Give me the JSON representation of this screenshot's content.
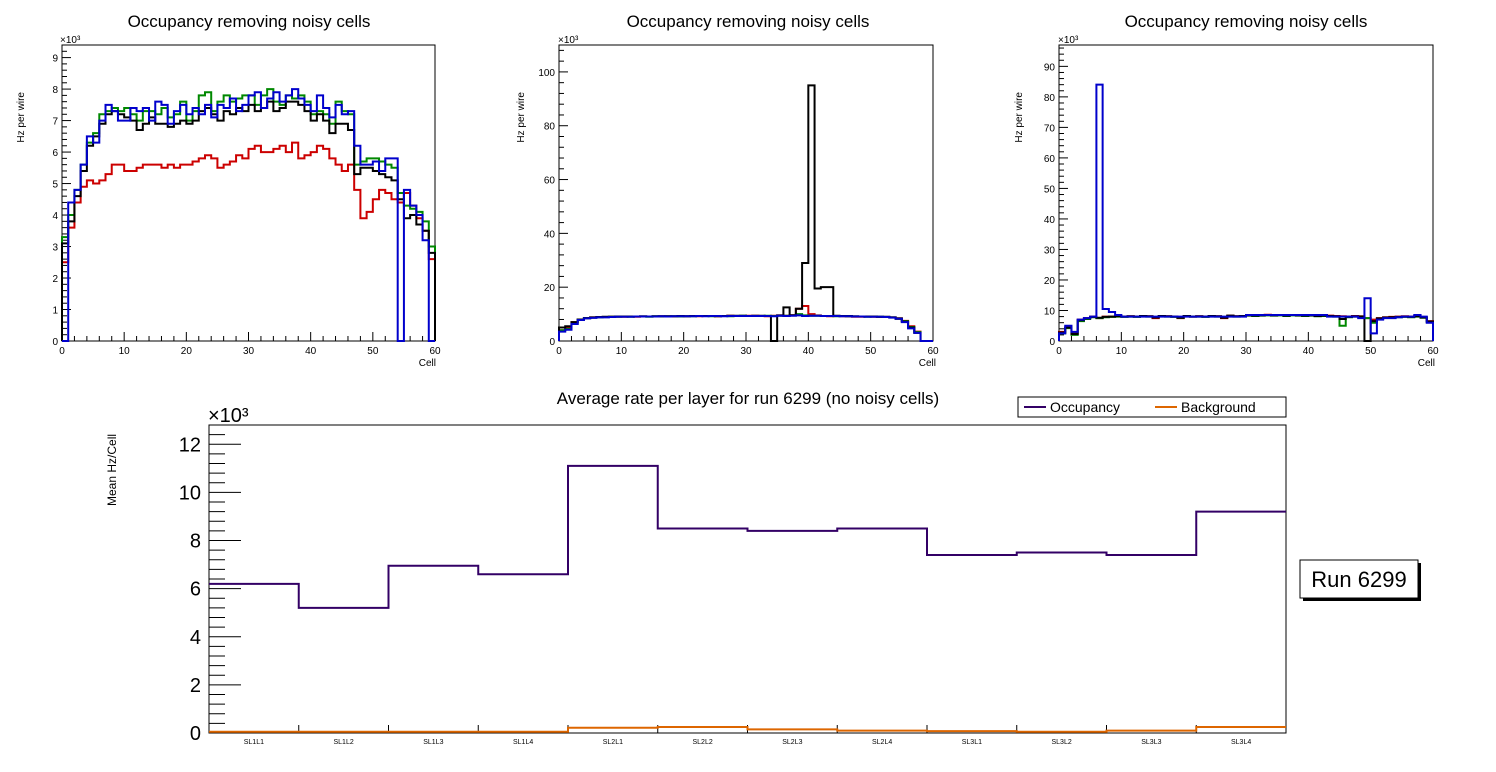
{
  "chart_data": [
    {
      "type": "line",
      "title": "Occupancy removing noisy cells",
      "xlabel": "Cell",
      "ylabel": "Hz per wire",
      "y_exponent": "×10³",
      "xlim": [
        0,
        60
      ],
      "ylim": [
        0,
        9.4
      ],
      "x_ticks": [
        0,
        10,
        20,
        30,
        40,
        50,
        60
      ],
      "y_ticks": [
        0,
        1,
        2,
        3,
        4,
        5,
        6,
        7,
        8,
        9
      ],
      "series": [
        {
          "name": "red",
          "color": "#cc0000",
          "values": [
            2.5,
            3.6,
            4.4,
            4.9,
            5.1,
            5.0,
            5.1,
            5.3,
            5.6,
            5.6,
            5.4,
            5.4,
            5.5,
            5.6,
            5.6,
            5.6,
            5.5,
            5.6,
            5.5,
            5.6,
            5.6,
            5.7,
            5.8,
            5.9,
            5.8,
            5.5,
            5.6,
            5.7,
            5.9,
            5.8,
            6.1,
            6.2,
            6.0,
            6.0,
            6.1,
            6.2,
            6.0,
            6.3,
            5.8,
            5.9,
            6.0,
            6.2,
            6.1,
            5.8,
            5.6,
            5.4,
            5.6,
            4.8,
            3.9,
            4.1,
            4.5,
            4.8,
            4.7,
            4.5,
            4.4,
            4.7,
            4.3,
            3.9,
            3.5,
            2.6
          ]
        },
        {
          "name": "green",
          "color": "#008800",
          "values": [
            3.3,
            4.0,
            4.8,
            5.6,
            6.3,
            6.6,
            7.2,
            7.3,
            7.4,
            7.3,
            7.4,
            7.2,
            7.0,
            7.3,
            7.3,
            7.2,
            7.4,
            7.1,
            7.2,
            7.6,
            7.0,
            7.3,
            7.8,
            7.9,
            7.3,
            7.6,
            7.8,
            7.6,
            7.7,
            7.8,
            7.8,
            7.5,
            7.8,
            8.0,
            7.6,
            7.5,
            7.8,
            7.7,
            7.8,
            7.6,
            7.2,
            7.3,
            7.2,
            6.9,
            7.6,
            7.3,
            7.2,
            5.6,
            5.7,
            5.8,
            5.8,
            5.7,
            5.6,
            5.5,
            4.7,
            4.3,
            4.2,
            4.1,
            3.8,
            3.0
          ]
        },
        {
          "name": "black",
          "color": "#000000",
          "values": [
            3.1,
            3.8,
            4.6,
            5.4,
            6.2,
            6.5,
            6.9,
            7.2,
            7.3,
            7.2,
            7.1,
            7.0,
            6.7,
            6.9,
            7.1,
            6.9,
            6.9,
            6.8,
            6.9,
            7.0,
            6.9,
            7.0,
            7.3,
            7.4,
            7.2,
            7.0,
            7.3,
            7.2,
            7.4,
            7.3,
            7.5,
            7.3,
            7.4,
            7.6,
            7.3,
            7.4,
            7.6,
            7.6,
            7.5,
            7.3,
            7.0,
            7.2,
            7.0,
            6.6,
            6.9,
            6.9,
            6.7,
            5.3,
            5.5,
            5.5,
            5.4,
            5.3,
            5.2,
            5.1,
            4.5,
            3.9,
            4.0,
            3.7,
            3.5,
            2.8
          ]
        },
        {
          "name": "blue",
          "color": "#0000cc",
          "values": [
            0,
            4.4,
            4.8,
            5.6,
            6.5,
            6.3,
            7.0,
            7.5,
            7.3,
            7.0,
            7.0,
            7.4,
            7.3,
            7.4,
            7.0,
            7.6,
            7.5,
            6.9,
            7.3,
            7.5,
            7.2,
            7.4,
            7.2,
            7.5,
            7.1,
            7.5,
            7.4,
            7.7,
            7.3,
            7.5,
            7.8,
            7.9,
            7.4,
            7.7,
            7.9,
            7.6,
            7.8,
            8.0,
            7.7,
            7.5,
            7.3,
            7.8,
            7.4,
            7.1,
            7.5,
            7.2,
            7.3,
            6.2,
            5.6,
            5.6,
            5.7,
            5.4,
            5.8,
            5.8,
            0,
            4.8,
            4.3,
            4.0,
            3.2,
            0
          ]
        }
      ]
    },
    {
      "type": "line",
      "title": "Occupancy removing noisy cells",
      "xlabel": "Cell",
      "ylabel": "Hz per wire",
      "y_exponent": "×10³",
      "xlim": [
        0,
        60
      ],
      "ylim": [
        0,
        110
      ],
      "x_ticks": [
        0,
        10,
        20,
        30,
        40,
        50,
        60
      ],
      "y_ticks": [
        0,
        20,
        40,
        60,
        80,
        100
      ],
      "series": [
        {
          "name": "red",
          "color": "#cc0000",
          "values": [
            4,
            5,
            7,
            8,
            8.5,
            8.8,
            8.9,
            8.9,
            9,
            9,
            9,
            9.1,
            9,
            9.1,
            9.1,
            9.1,
            9.2,
            9.2,
            9.1,
            9.2,
            9.2,
            9.3,
            9.2,
            9.3,
            9.3,
            9.2,
            9.3,
            9.4,
            9.3,
            9.3,
            9.4,
            9.4,
            9.3,
            9.2,
            9.4,
            9.5,
            9.4,
            9.6,
            12,
            13,
            10,
            9.5,
            9.3,
            9.2,
            9.3,
            9.2,
            9.1,
            9.0,
            9.0,
            9.1,
            9.0,
            8.9,
            8.9,
            8.8,
            8.5,
            7.5,
            5.5,
            3.5,
            0,
            0
          ]
        },
        {
          "name": "green",
          "color": "#008800",
          "values": [
            4,
            4.5,
            6.5,
            8,
            8.5,
            8.7,
            8.8,
            8.9,
            9,
            9,
            9.1,
            9,
            9.1,
            9.1,
            9,
            9.2,
            9.1,
            9.2,
            9.2,
            9.1,
            9.2,
            9.2,
            9.3,
            9.3,
            9.2,
            9.3,
            9.3,
            9.2,
            9.3,
            9.4,
            9.3,
            9.3,
            9.3,
            9.4,
            9.3,
            9.4,
            9.4,
            9.5,
            10,
            9.5,
            9.4,
            9.4,
            9.3,
            9.3,
            9.2,
            9.3,
            9.2,
            9.1,
            9.1,
            9.0,
            9.1,
            9.0,
            8.9,
            8.8,
            8.4,
            7.4,
            5.2,
            3.3,
            0,
            0
          ]
        },
        {
          "name": "black",
          "color": "#000000",
          "values": [
            5,
            5.5,
            7,
            8,
            8.5,
            8.8,
            8.9,
            9,
            9,
            9.1,
            9.1,
            9.1,
            9.1,
            9.2,
            9.1,
            9.2,
            9.2,
            9.2,
            9.2,
            9.3,
            9.2,
            9.3,
            9.3,
            9.3,
            9.3,
            9.2,
            9.3,
            9.4,
            9.4,
            9.4,
            9.3,
            9.4,
            9.4,
            9.3,
            0,
            9.5,
            12.5,
            9.5,
            12,
            29,
            95,
            19.5,
            20,
            20,
            9.4,
            9.3,
            9.3,
            9.2,
            9.1,
            9.1,
            9.1,
            9.0,
            9.0,
            8.8,
            8.2,
            7.2,
            5.0,
            3.0,
            0,
            0
          ]
        },
        {
          "name": "blue",
          "color": "#0000cc",
          "values": [
            3.5,
            4.2,
            6.3,
            7.8,
            8.4,
            8.6,
            8.8,
            8.8,
            8.9,
            9,
            9,
            9,
            9.1,
            9.1,
            9.1,
            9.1,
            9.2,
            9.1,
            9.2,
            9.2,
            9.2,
            9.2,
            9.3,
            9.2,
            9.3,
            9.3,
            9.2,
            9.3,
            9.3,
            9.3,
            9.3,
            9.3,
            9.3,
            9.3,
            9.2,
            9.4,
            9.3,
            9.4,
            9.5,
            9.3,
            9.4,
            9.4,
            9.3,
            9.3,
            9.3,
            9.2,
            9.2,
            9.1,
            9.1,
            9.0,
            9.0,
            9.0,
            8.9,
            8.7,
            8.3,
            7.0,
            4.7,
            3.0,
            0,
            0
          ]
        }
      ]
    },
    {
      "type": "line",
      "title": "Occupancy removing noisy cells",
      "xlabel": "Cell",
      "ylabel": "Hz per wire",
      "y_exponent": "×10³",
      "xlim": [
        0,
        60
      ],
      "ylim": [
        0,
        97
      ],
      "x_ticks": [
        0,
        10,
        20,
        30,
        40,
        50,
        60
      ],
      "y_ticks": [
        0,
        10,
        20,
        30,
        40,
        50,
        60,
        70,
        80,
        90
      ],
      "series": [
        {
          "name": "red",
          "color": "#cc0000",
          "values": [
            3,
            4.5,
            2.5,
            7,
            7.5,
            8,
            7.5,
            8,
            8,
            8.2,
            8,
            8.1,
            8,
            8.2,
            8.1,
            7.5,
            8.2,
            8.1,
            8,
            7.5,
            8.2,
            8,
            8.1,
            8,
            8.2,
            8.1,
            7.5,
            8.3,
            8.1,
            8.2,
            8.5,
            8.3,
            8.4,
            8.6,
            8.4,
            8.5,
            8.3,
            8.5,
            8.4,
            8.3,
            8.5,
            8.2,
            8.4,
            8.3,
            8.2,
            8.1,
            8,
            8.2,
            8.1,
            7.5,
            7,
            7.5,
            7.8,
            7.9,
            8,
            8.1,
            8,
            8.2,
            7.8,
            6.5
          ]
        },
        {
          "name": "green",
          "color": "#008800",
          "values": [
            2.5,
            4.2,
            2,
            6.5,
            7.2,
            7.8,
            7.5,
            7.8,
            7.9,
            8,
            7.9,
            8,
            7.9,
            8.1,
            8,
            7.8,
            8.1,
            8,
            7.9,
            7.6,
            8.1,
            8,
            8,
            7.9,
            8.1,
            8,
            7.8,
            8.2,
            8,
            8.1,
            8.3,
            8.2,
            8.3,
            8.4,
            8.3,
            8.4,
            8.2,
            8.4,
            8.3,
            8.2,
            8.3,
            8.1,
            8.2,
            8.1,
            8,
            5,
            7.8,
            8,
            8,
            7.5,
            6,
            7.3,
            7.6,
            7.7,
            7.8,
            7.9,
            7.8,
            8,
            7.6,
            6.2
          ]
        },
        {
          "name": "black",
          "color": "#000000",
          "values": [
            2.8,
            4.4,
            2.3,
            6.8,
            7.4,
            7.9,
            7.6,
            7.9,
            8,
            8.1,
            8,
            8.1,
            8,
            8.2,
            8.1,
            7.7,
            8.2,
            8.1,
            8,
            7.6,
            8.2,
            8,
            8.1,
            8,
            8.2,
            8.1,
            7.6,
            8.3,
            8.1,
            8.2,
            8.4,
            8.3,
            8.4,
            8.5,
            8.4,
            8.5,
            8.3,
            8.5,
            8.4,
            8.3,
            8.4,
            8.2,
            8.3,
            8.2,
            8.1,
            7.2,
            7.9,
            8.1,
            8,
            0,
            6.5,
            7.4,
            7.7,
            7.8,
            7.9,
            8,
            7.9,
            8.1,
            7.7,
            6.4
          ]
        },
        {
          "name": "blue",
          "color": "#0000cc",
          "values": [
            2.5,
            5,
            3,
            7,
            7.5,
            8,
            84,
            10.5,
            9.5,
            8.5,
            8,
            8,
            8,
            8,
            8,
            8,
            8,
            8,
            8,
            8,
            8,
            8,
            8,
            8,
            8,
            8,
            8,
            8,
            8,
            8,
            8.5,
            8.5,
            8.5,
            8.5,
            8.5,
            8.5,
            8.5,
            8.5,
            8.5,
            8.5,
            8.5,
            8.5,
            8.5,
            8,
            8,
            8,
            8,
            8,
            7.5,
            14,
            2.5,
            7,
            7.5,
            7.5,
            7.8,
            8,
            8,
            8.5,
            8,
            6
          ]
        }
      ]
    },
    {
      "type": "line",
      "title": "Average rate per layer for run 6299 (no noisy cells)",
      "xlabel": "",
      "ylabel": "Mean Hz/Cell",
      "y_exponent": "×10³",
      "ylim": [
        0,
        12.8
      ],
      "y_ticks": [
        0,
        2,
        4,
        6,
        8,
        10,
        12
      ],
      "categories": [
        "SL1L1",
        "SL1L2",
        "SL1L3",
        "SL1L4",
        "SL2L1",
        "SL2L2",
        "SL2L3",
        "SL2L4",
        "SL3L1",
        "SL3L2",
        "SL3L3",
        "SL3L4"
      ],
      "series": [
        {
          "name": "Occupancy",
          "color": "#330066",
          "values": [
            6.2,
            5.2,
            6.95,
            6.6,
            11.1,
            8.5,
            8.4,
            8.5,
            7.4,
            7.5,
            7.4,
            9.2
          ]
        },
        {
          "name": "Background",
          "color": "#dd6600",
          "values": [
            0.05,
            0.05,
            0.05,
            0.05,
            0.22,
            0.25,
            0.15,
            0.1,
            0.08,
            0.05,
            0.1,
            0.25
          ]
        }
      ],
      "legend": [
        "Occupancy",
        "Background"
      ],
      "annotation": "Run 6299"
    }
  ]
}
